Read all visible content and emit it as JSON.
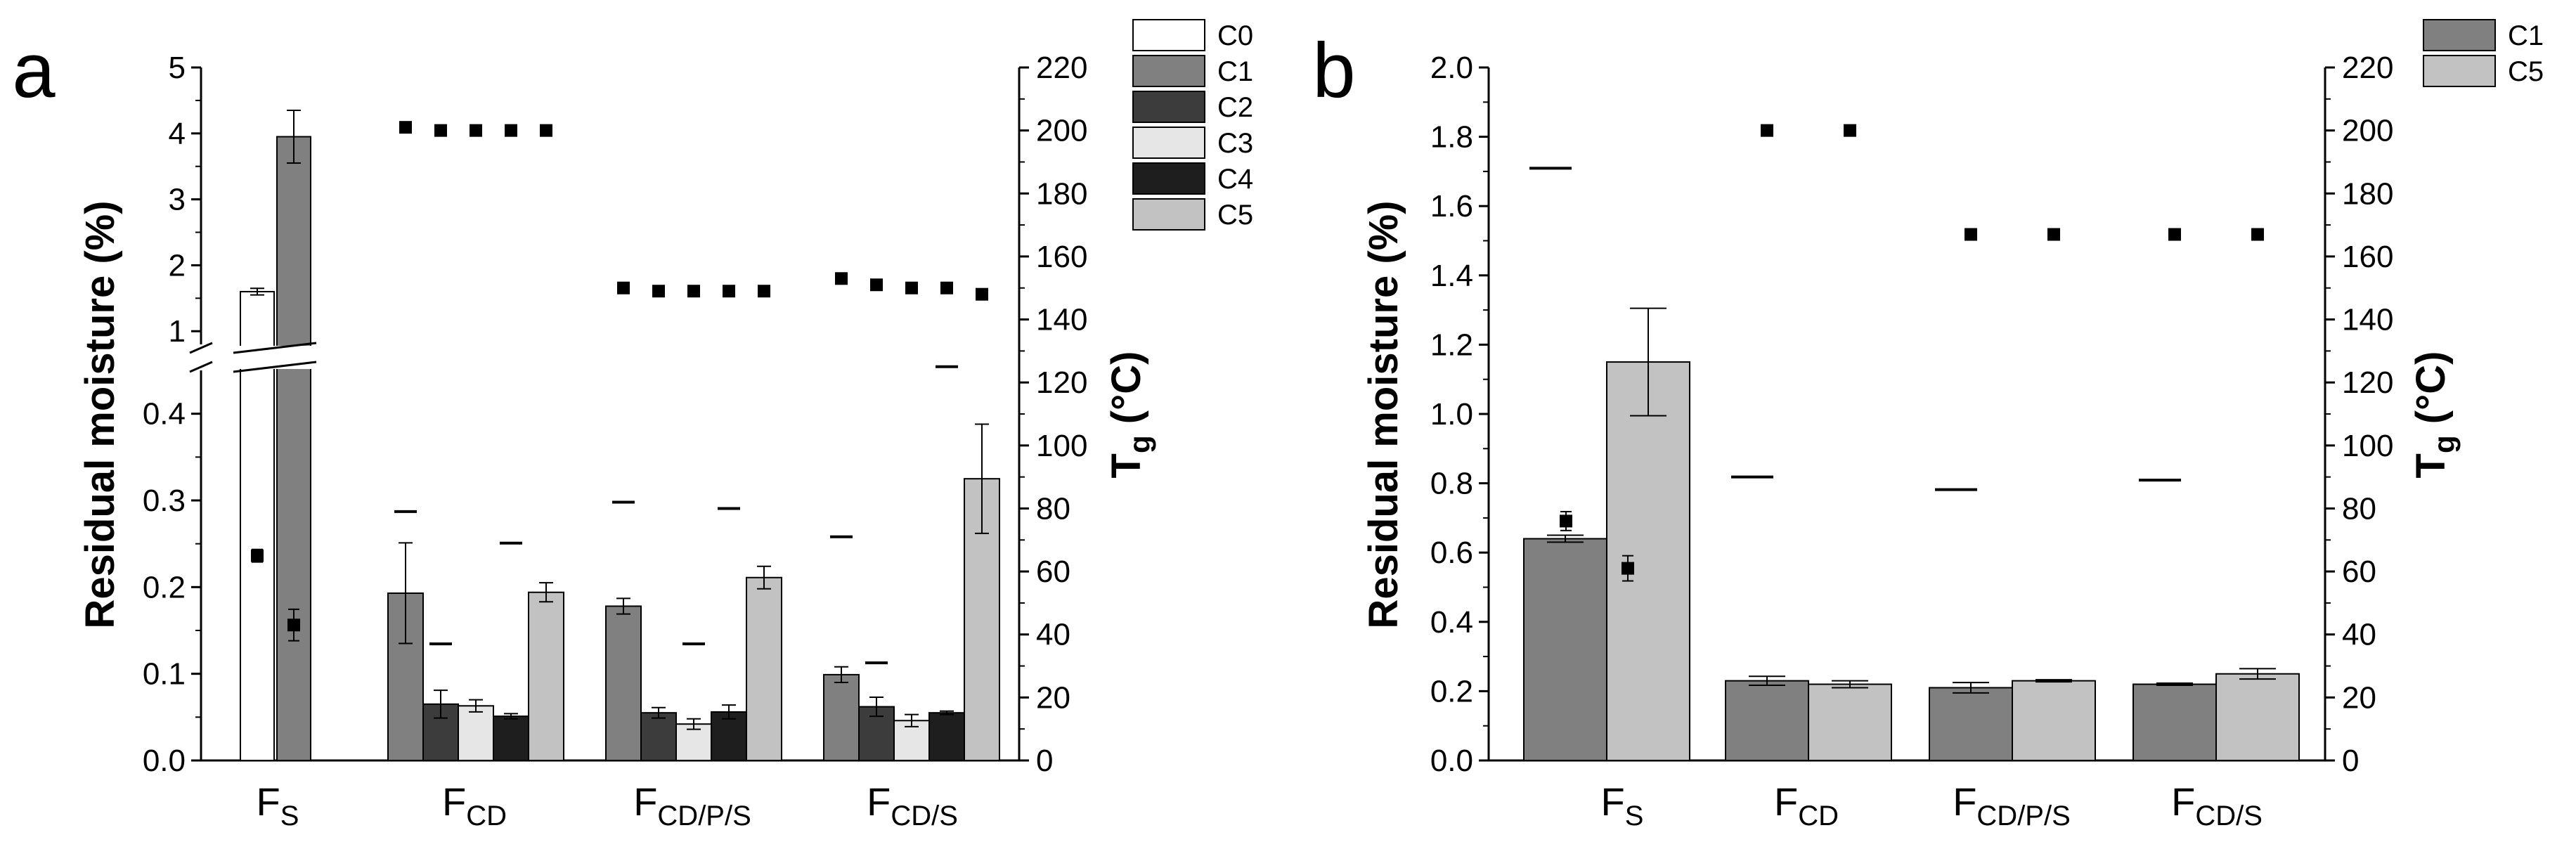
{
  "chart_data": [
    {
      "panel": "a",
      "type": "bar",
      "title": "",
      "ylabel": "Residual moisture (%)",
      "y2label": "Tg (°C)",
      "y2label_main": "T",
      "y2label_sub": "g",
      "y2label_unit": "(°C)",
      "ylim_lower": [
        0,
        0.45
      ],
      "ylim_upper": [
        0.8,
        5
      ],
      "y2lim": [
        0,
        220
      ],
      "yticks_lower": [
        "0.0",
        "0.1",
        "0.2",
        "0.3",
        "0.4"
      ],
      "yticks_upper": [
        "1",
        "2",
        "3",
        "4",
        "5"
      ],
      "y2ticks": [
        "0",
        "20",
        "40",
        "60",
        "80",
        "100",
        "120",
        "140",
        "160",
        "180",
        "200",
        "220"
      ],
      "legend": [
        "C0",
        "C1",
        "C2",
        "C3",
        "C4",
        "C5"
      ],
      "legend_position": "top-right",
      "colors": {
        "C0": "#ffffff",
        "C1": "#808080",
        "C2": "#3c3c3c",
        "C3": "#e6e6e6",
        "C4": "#1e1e1e",
        "C5": "#c2c2c2"
      },
      "groups": [
        {
          "label_main": "F",
          "label_sub": "S",
          "bars": [
            {
              "series": "C0",
              "value": 1.6,
              "err": 0.05,
              "tg_dash": null,
              "tg_point": 65,
              "tg_point_err": 2
            },
            {
              "series": "C1",
              "value": 3.95,
              "err": 0.4,
              "tg_dash": null,
              "tg_point": 43,
              "tg_point_err": 5
            }
          ]
        },
        {
          "label_main": "F",
          "label_sub": "CD",
          "bars": [
            {
              "series": "C1",
              "value": 0.193,
              "err": 0.058,
              "tg_dash": 79,
              "tg_point": 201,
              "tg_point_err": 1
            },
            {
              "series": "C2",
              "value": 0.065,
              "err": 0.016,
              "tg_dash": 37,
              "tg_point": 200,
              "tg_point_err": 1
            },
            {
              "series": "C3",
              "value": 0.063,
              "err": 0.007,
              "tg_dash": null,
              "tg_point": 200,
              "tg_point_err": 1
            },
            {
              "series": "C4",
              "value": 0.051,
              "err": 0.003,
              "tg_dash": 69,
              "tg_point": 200,
              "tg_point_err": 1
            },
            {
              "series": "C5",
              "value": 0.194,
              "err": 0.011,
              "tg_dash": null,
              "tg_point": 200,
              "tg_point_err": 1
            }
          ]
        },
        {
          "label_main": "F",
          "label_sub": "CD/P/S",
          "bars": [
            {
              "series": "C1",
              "value": 0.178,
              "err": 0.009,
              "tg_dash": 82,
              "tg_point": 150,
              "tg_point_err": 1
            },
            {
              "series": "C2",
              "value": 0.055,
              "err": 0.006,
              "tg_dash": null,
              "tg_point": 149,
              "tg_point_err": 1
            },
            {
              "series": "C3",
              "value": 0.042,
              "err": 0.006,
              "tg_dash": 37,
              "tg_point": 149,
              "tg_point_err": 1
            },
            {
              "series": "C4",
              "value": 0.056,
              "err": 0.008,
              "tg_dash": 80,
              "tg_point": 149,
              "tg_point_err": 1
            },
            {
              "series": "C5",
              "value": 0.211,
              "err": 0.013,
              "tg_dash": null,
              "tg_point": 149,
              "tg_point_err": 1
            }
          ]
        },
        {
          "label_main": "F",
          "label_sub": "CD/S",
          "bars": [
            {
              "series": "C1",
              "value": 0.099,
              "err": 0.009,
              "tg_dash": 71,
              "tg_point": 153,
              "tg_point_err": 1
            },
            {
              "series": "C2",
              "value": 0.062,
              "err": 0.011,
              "tg_dash": 31,
              "tg_point": 151,
              "tg_point_err": 1
            },
            {
              "series": "C3",
              "value": 0.046,
              "err": 0.007,
              "tg_dash": null,
              "tg_point": 150,
              "tg_point_err": 1
            },
            {
              "series": "C4",
              "value": 0.055,
              "err": 0.002,
              "tg_dash": 125,
              "tg_point": 150,
              "tg_point_err": 1
            },
            {
              "series": "C5",
              "value": 0.325,
              "err": 0.063,
              "tg_dash": null,
              "tg_point": 148,
              "tg_point_err": 1
            }
          ]
        }
      ]
    },
    {
      "panel": "b",
      "type": "bar",
      "title": "",
      "ylabel": "Residual moisture (%)",
      "y2label": "Tg (°C)",
      "y2label_main": "T",
      "y2label_sub": "g",
      "y2label_unit": "(°C)",
      "ylim": [
        0,
        2.0
      ],
      "y2lim": [
        0,
        220
      ],
      "yticks": [
        "0.0",
        "0.2",
        "0.4",
        "0.6",
        "0.8",
        "1.0",
        "1.2",
        "1.4",
        "1.6",
        "1.8",
        "2.0"
      ],
      "y2ticks": [
        "0",
        "20",
        "40",
        "60",
        "80",
        "100",
        "120",
        "140",
        "160",
        "180",
        "200",
        "220"
      ],
      "legend": [
        "C1",
        "C5"
      ],
      "legend_position": "top-right",
      "colors": {
        "C1": "#808080",
        "C5": "#c2c2c2"
      },
      "groups": [
        {
          "label_main": "F",
          "label_sub": "S",
          "tg_dash": 188,
          "bars": [
            {
              "series": "C1",
              "value": 0.64,
              "err": 0.01,
              "tg_point": 76,
              "tg_point_err": 3
            },
            {
              "series": "C5",
              "value": 1.15,
              "err": 0.155,
              "tg_point": 61,
              "tg_point_err": 4
            }
          ]
        },
        {
          "label_main": "F",
          "label_sub": "CD",
          "tg_dash": 90,
          "bars": [
            {
              "series": "C1",
              "value": 0.23,
              "err": 0.013,
              "tg_point": 200,
              "tg_point_err": 1
            },
            {
              "series": "C5",
              "value": 0.22,
              "err": 0.01,
              "tg_point": 200,
              "tg_point_err": 1
            }
          ]
        },
        {
          "label_main": "F",
          "label_sub": "CD/P/S",
          "tg_dash": 86,
          "bars": [
            {
              "series": "C1",
              "value": 0.21,
              "err": 0.015,
              "tg_point": 167,
              "tg_point_err": 1
            },
            {
              "series": "C5",
              "value": 0.23,
              "err": 0.003,
              "tg_point": 167,
              "tg_point_err": 1
            }
          ]
        },
        {
          "label_main": "F",
          "label_sub": "CD/S",
          "tg_dash": 89,
          "bars": [
            {
              "series": "C1",
              "value": 0.22,
              "err": 0.003,
              "tg_point": 167,
              "tg_point_err": 1
            },
            {
              "series": "C5",
              "value": 0.25,
              "err": 0.015,
              "tg_point": 167,
              "tg_point_err": 1
            }
          ]
        }
      ]
    }
  ]
}
